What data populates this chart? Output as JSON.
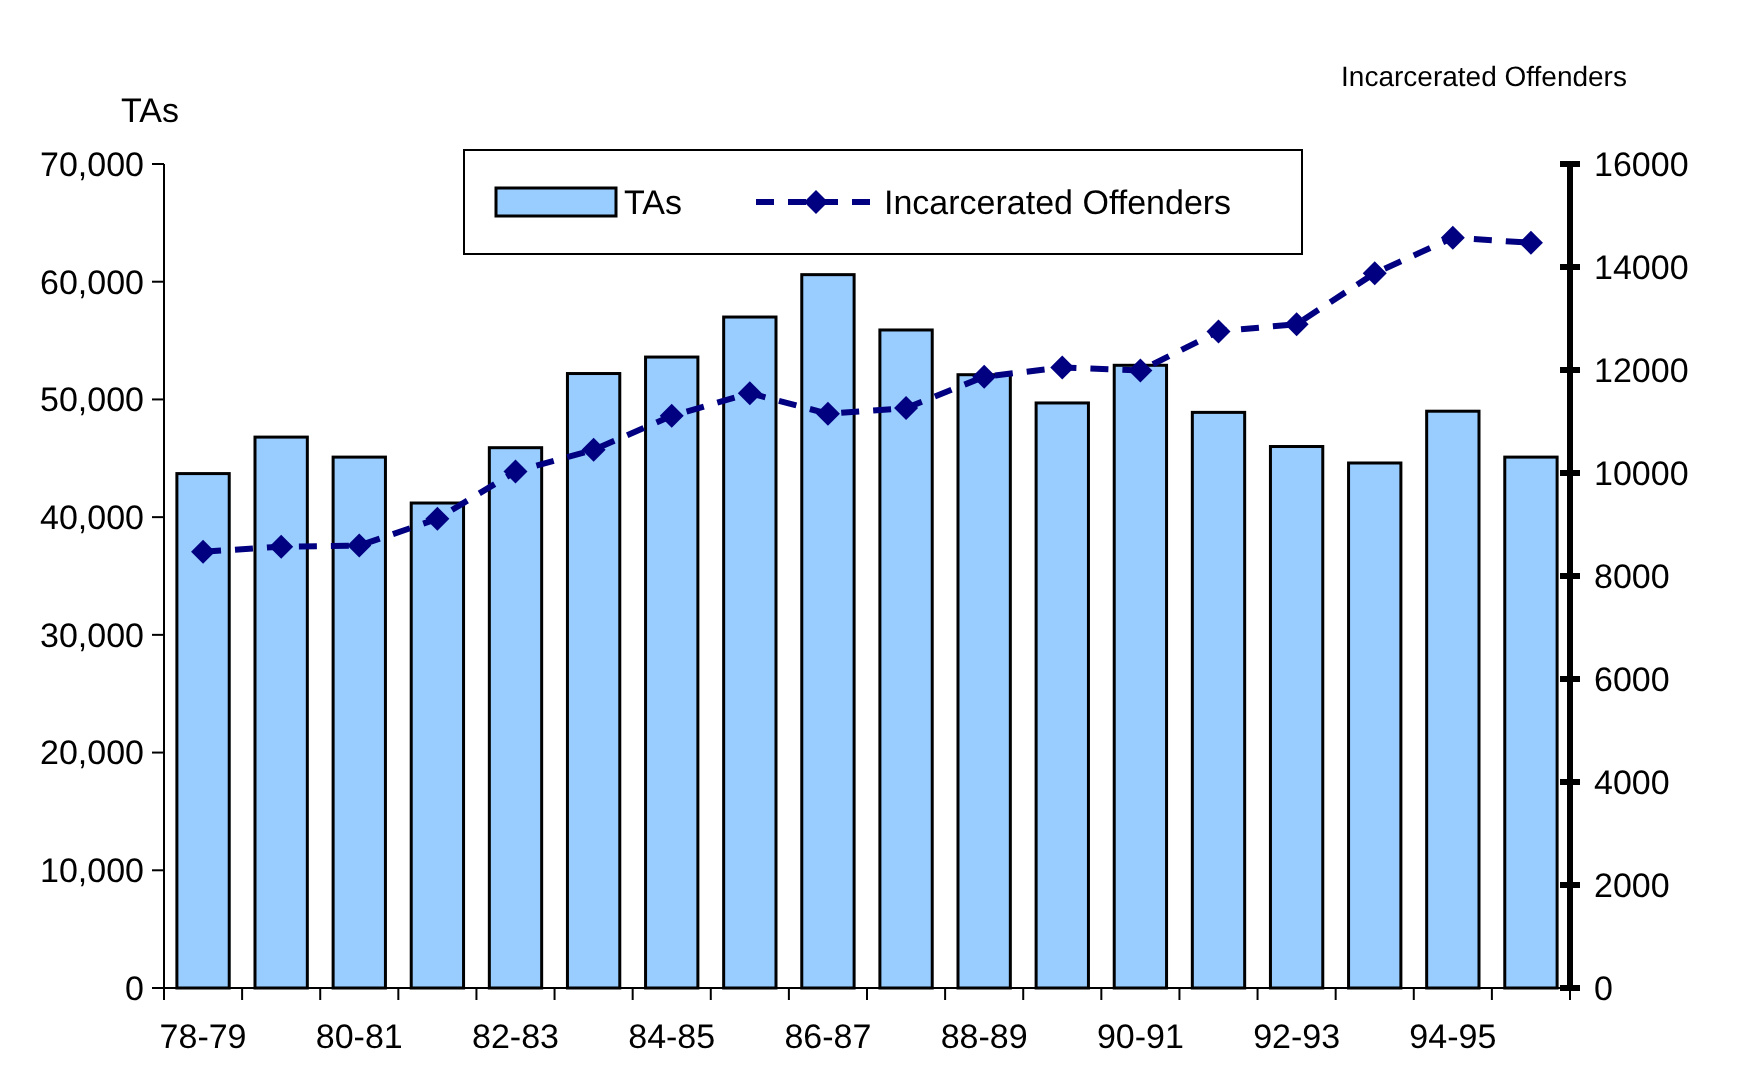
{
  "chart_data": {
    "type": "bar",
    "ylabel": "TAs",
    "y2label": "Incarcerated Offenders",
    "categories": [
      "78-79",
      null,
      "80-81",
      null,
      "82-83",
      null,
      "84-85",
      null,
      "86-87",
      null,
      "88-89",
      null,
      "90-91",
      null,
      "92-93",
      null,
      "94-95",
      null
    ],
    "series": [
      {
        "name": "TAs",
        "color": "#99ccff",
        "values": [
          43700,
          46800,
          45100,
          41200,
          45900,
          52200,
          53600,
          57000,
          60600,
          55900,
          52100,
          49700,
          52900,
          48900,
          46000,
          44600,
          49000,
          45100
        ]
      },
      {
        "name": "Incarcerated Offenders",
        "type": "line",
        "axis": "y2",
        "color": "#000080",
        "marker": "diamond",
        "line_style": "dashed",
        "values": [
          8470,
          8570,
          8590,
          9110,
          10030,
          10450,
          11110,
          11550,
          11150,
          11260,
          11870,
          12050,
          11990,
          12750,
          12890,
          13880,
          14570,
          14470
        ]
      }
    ],
    "ylim": [
      0,
      70000
    ],
    "yticks": [
      {
        "value": 0,
        "label": "0"
      },
      {
        "value": 10000,
        "label": "10,000"
      },
      {
        "value": 20000,
        "label": "20,000"
      },
      {
        "value": 30000,
        "label": "30,000"
      },
      {
        "value": 40000,
        "label": "40,000"
      },
      {
        "value": 50000,
        "label": "50,000"
      },
      {
        "value": 60000,
        "label": "60,000"
      },
      {
        "value": 70000,
        "label": "70,000"
      }
    ],
    "y2lim": [
      0,
      16000
    ],
    "y2ticks": [
      0,
      2000,
      4000,
      6000,
      8000,
      10000,
      12000,
      14000,
      16000
    ],
    "grid": false,
    "legend": "top"
  }
}
